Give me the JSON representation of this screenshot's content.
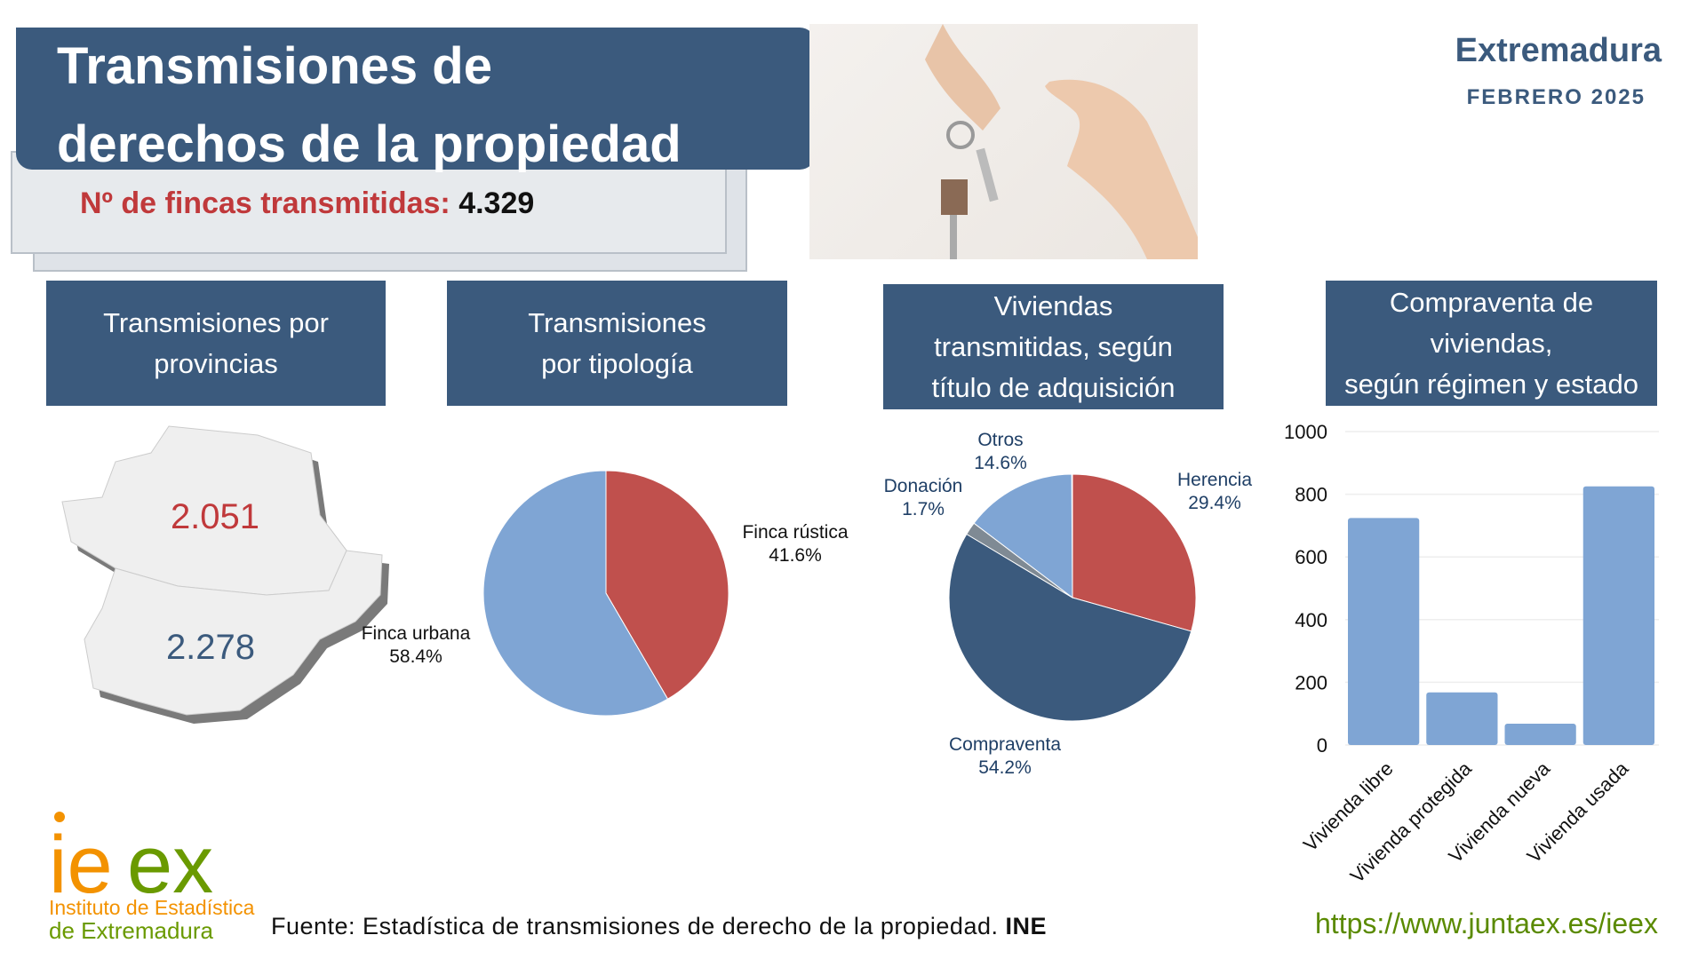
{
  "header": {
    "title_line1": "Transmisiones de",
    "title_line2": "derechos de la propiedad",
    "fincas_label": "Nº de fincas transmitidas:",
    "fincas_value": "4.329",
    "region": "Extremadura",
    "period": "FEBRERO 2025"
  },
  "sections": [
    "Transmisiones por provincias",
    "Transmisiones por tipología",
    "Viviendas transmitidas, según título de adquisición",
    "Compraventa de viviendas, según régimen y estado"
  ],
  "section_lines": [
    [
      "Transmisiones por",
      "provincias"
    ],
    [
      "Transmisiones",
      "por tipología"
    ],
    [
      "Viviendas",
      "transmitidas, según",
      "título de adquisición"
    ],
    [
      "Compraventa de",
      "viviendas,",
      "según régimen y estado"
    ]
  ],
  "map": {
    "caceres": "2.051",
    "badajoz": "2.278",
    "caceres_color": "#c0393b",
    "badajoz_color": "#3b5a7d"
  },
  "colors": {
    "dark_blue": "#3b5a7d",
    "red": "#c0504d",
    "light_blue": "#7fa5d4",
    "grey": "#7f8a94",
    "green": "#5a8a00",
    "orange": "#f39200"
  },
  "chart_data": [
    {
      "type": "pie",
      "slices": [
        {
          "label": "Finca rústica",
          "value": 41.6,
          "pct": "41.6%",
          "color": "#c0504d"
        },
        {
          "label": "Finca urbana",
          "value": 58.4,
          "pct": "58.4%",
          "color": "#7fa5d4"
        }
      ]
    },
    {
      "type": "pie",
      "slices": [
        {
          "label": "Herencia",
          "value": 29.4,
          "pct": "29.4%",
          "color": "#c0504d"
        },
        {
          "label": "Compraventa",
          "value": 54.2,
          "pct": "54.2%",
          "color": "#3b5a7d"
        },
        {
          "label": "Donación",
          "value": 1.7,
          "pct": "1.7%",
          "color": "#7f8a94"
        },
        {
          "label": "Otros",
          "value": 14.6,
          "pct": "14.6%",
          "color": "#7fa5d4"
        }
      ]
    },
    {
      "type": "bar",
      "categories": [
        "Vivienda libre",
        "Vivienda protegida",
        "Vivienda nueva",
        "Vivienda usada"
      ],
      "values": [
        724,
        168,
        68,
        825
      ],
      "ylim": [
        0,
        1000
      ],
      "yticks": [
        "0",
        "200",
        "400",
        "600",
        "800",
        "1000"
      ],
      "grid": true,
      "color": "#7fa5d4"
    }
  ],
  "footer": {
    "logo_text": "ieex",
    "logo_sub1": "Instituto de Estadística",
    "logo_sub2": "de Extremadura",
    "source": "Fuente: Estadística de transmisiones de derecho de la propiedad.",
    "source_bold": "INE",
    "url": "https://www.juntaex.es/ieex"
  }
}
